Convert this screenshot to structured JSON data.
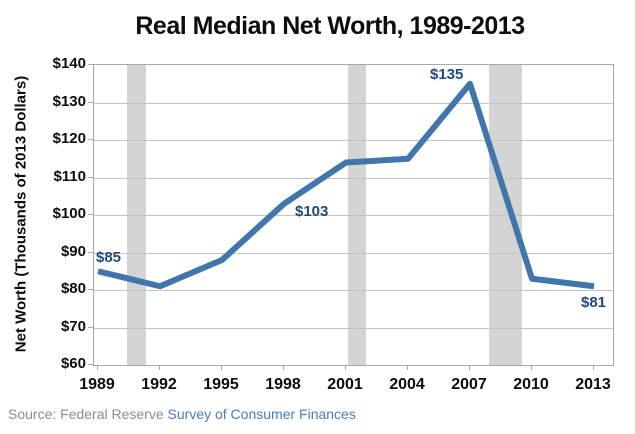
{
  "title": "Real Median Net Worth, 1989-2013",
  "source": {
    "prefix": "Source: Federal Reserve ",
    "link_text": "Survey of Consumer Finances"
  },
  "chart_data": {
    "type": "line",
    "title": "Real Median Net Worth, 1989-2013",
    "categories": [
      "1989",
      "1992",
      "1995",
      "1998",
      "2001",
      "2004",
      "2007",
      "2010",
      "2013"
    ],
    "series": [
      {
        "name": "Real median net worth (thousands of 2013 dollars)",
        "values": [
          85,
          81,
          88,
          103,
          114,
          115,
          135,
          83,
          81
        ]
      }
    ],
    "point_labels": [
      {
        "index": 0,
        "text": "$85"
      },
      {
        "index": 3,
        "text": "$103"
      },
      {
        "index": 6,
        "text": "$135"
      },
      {
        "index": 8,
        "text": "$81"
      }
    ],
    "xlabel": "",
    "ylabel": "Net Worth (Thousands of 2013 Dollars)",
    "ylim": [
      60,
      140
    ],
    "y_tick_step": 10,
    "y_tick_labels": [
      "$60",
      "$70",
      "$80",
      "$90",
      "$100",
      "$110",
      "$120",
      "$130",
      "$140"
    ],
    "grid": true,
    "legend": false,
    "recession_bands_years": [
      [
        1990.4,
        1991.3
      ],
      [
        2001.1,
        2001.95
      ],
      [
        2007.9,
        2009.5
      ]
    ],
    "colors": {
      "line": "#4176ad",
      "point_label": "#1f497d",
      "recession_band": "#d4d4d4",
      "gridline": "#c3c3c3",
      "plot_border": "#a8a8a8",
      "source_text": "#8c8c8c",
      "source_link": "#4a7cb8",
      "text": "#0d0d0d"
    }
  }
}
